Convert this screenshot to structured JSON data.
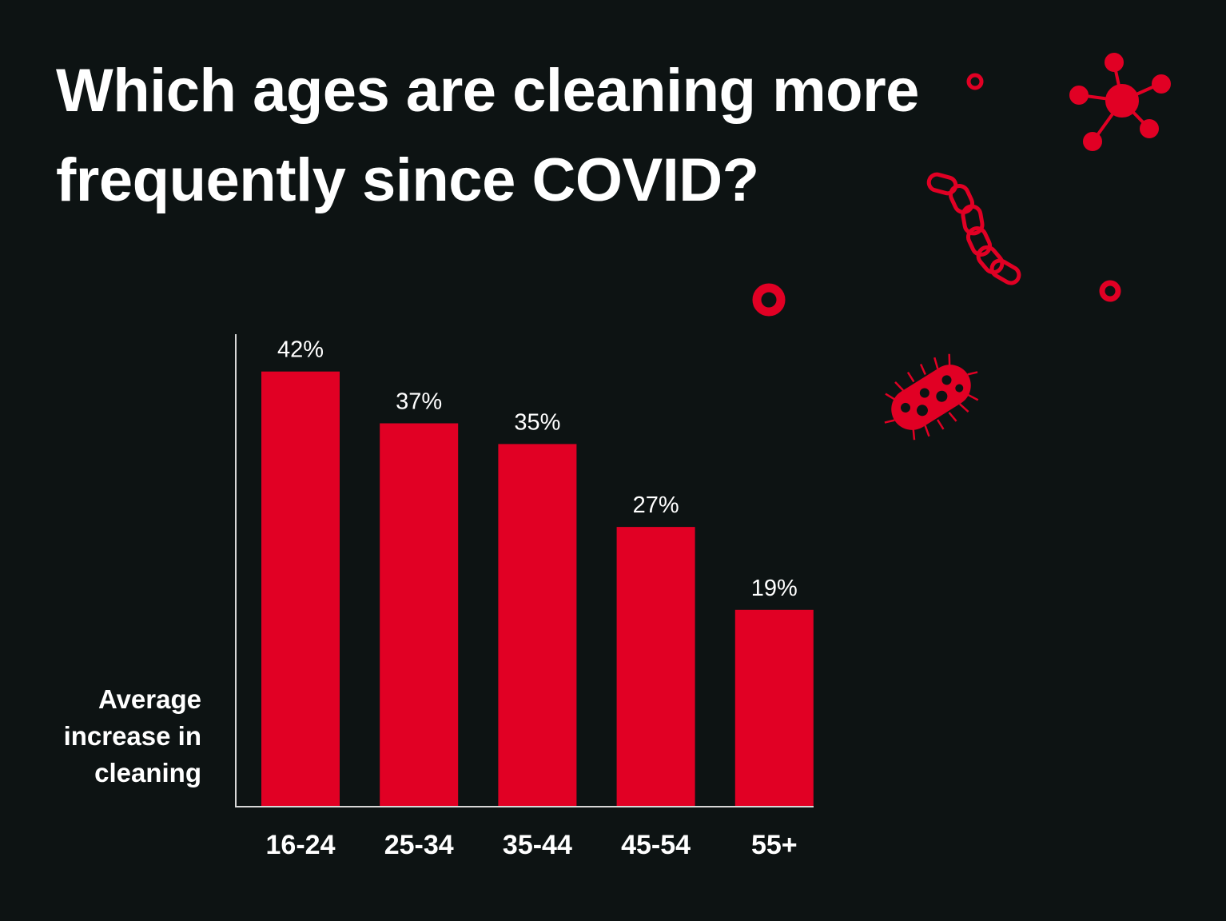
{
  "colors": {
    "background": "#0d1313",
    "bar": "#e10024",
    "text": "#ffffff",
    "axis": "#d8d8d8",
    "decoration": "#e10024"
  },
  "chart_data": {
    "type": "bar",
    "title_lines": [
      "Which ages are cleaning more",
      "frequently since COVID?"
    ],
    "ylabel_lines": [
      "Average",
      "increase in",
      "cleaning"
    ],
    "categories": [
      "16-24",
      "25-34",
      "35-44",
      "45-54",
      "55+"
    ],
    "values": [
      42,
      37,
      35,
      27,
      19
    ],
    "value_labels": [
      "42%",
      "37%",
      "35%",
      "27%",
      "19%"
    ],
    "ylim": [
      0,
      45.6
    ],
    "grid": false,
    "legend": "none",
    "y_tick_labels_shown": false
  },
  "decorations": [
    "virus-icon",
    "bacteria-chain-icon",
    "bacterium-icon",
    "ring-icon",
    "ring-icon",
    "ring-icon"
  ]
}
